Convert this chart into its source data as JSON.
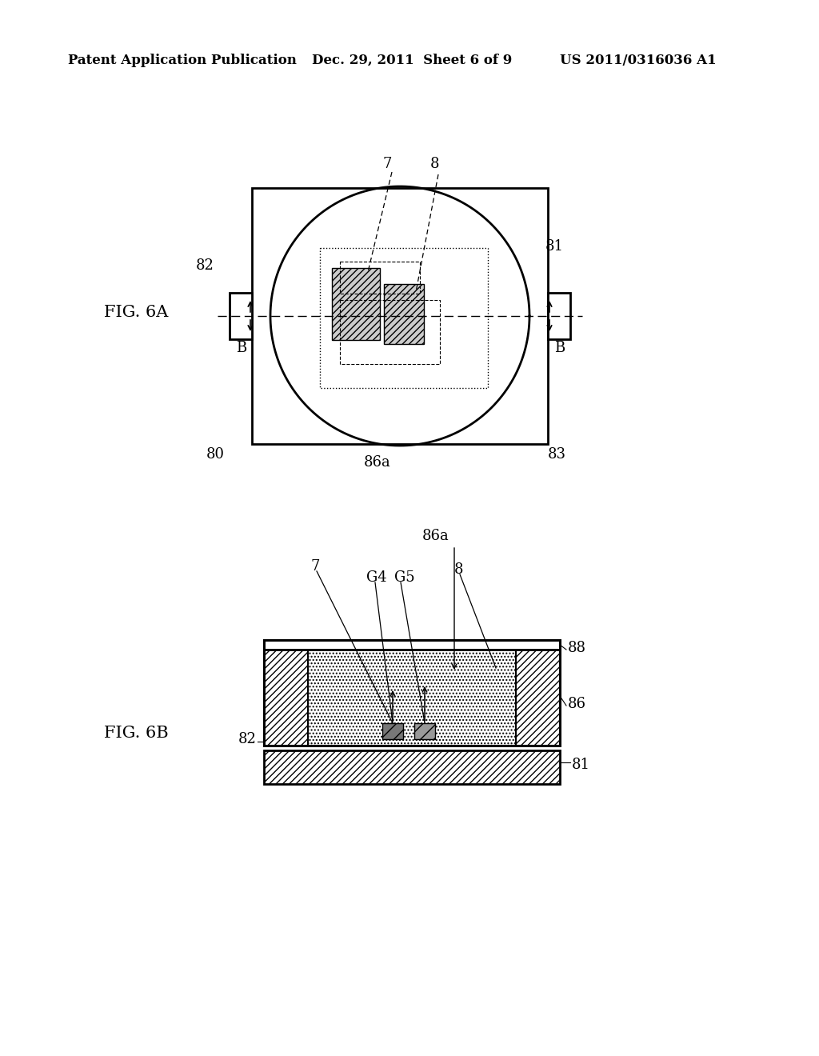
{
  "bg_color": "#ffffff",
  "header_left": "Patent Application Publication",
  "header_mid": "Dec. 29, 2011  Sheet 6 of 9",
  "header_right": "US 2011/0316036 A1",
  "fig6a_label": "FIG. 6A",
  "fig6b_label": "FIG. 6B",
  "header_fontsize": 12,
  "label_fontsize": 13,
  "figlabel_fontsize": 15
}
